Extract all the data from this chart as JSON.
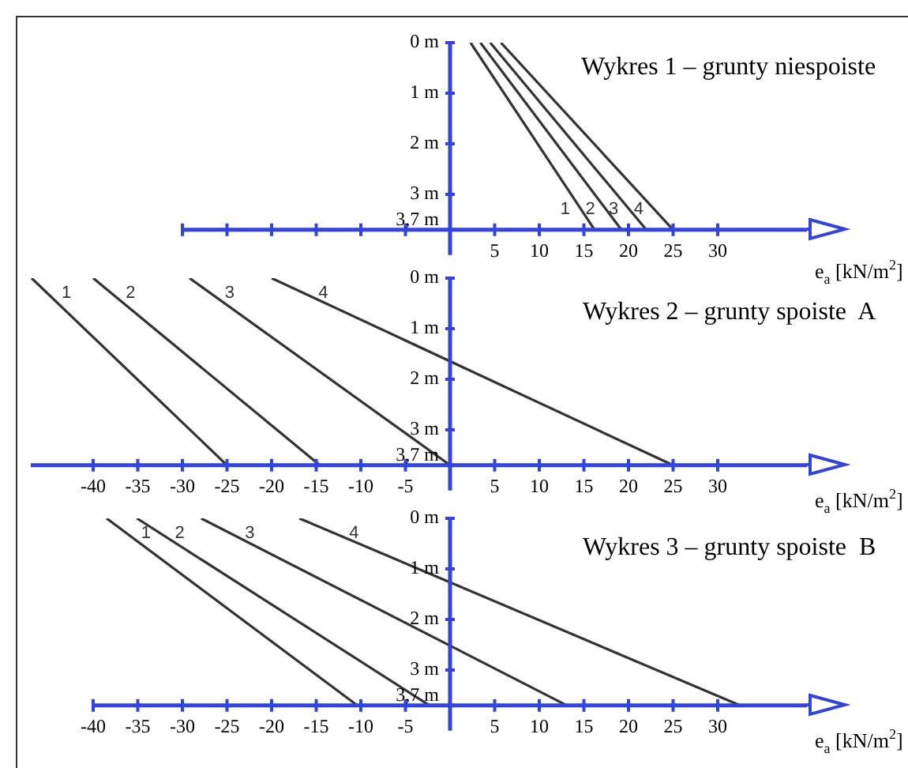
{
  "chart_data": [
    {
      "type": "line",
      "title": "Wykres 1 – grunty niespoiste",
      "xlabel": "e$_{a}$ [kN/m$^{2}$]",
      "xlim": [
        -30,
        40
      ],
      "xticks": [
        {
          "value": -30,
          "label": null
        },
        {
          "value": -25,
          "label": null
        },
        {
          "value": -20,
          "label": null
        },
        {
          "value": -15,
          "label": null
        },
        {
          "value": -10,
          "label": null
        },
        {
          "value": -5,
          "label": null
        },
        5,
        10,
        15,
        20,
        25,
        30
      ],
      "ylim": [
        4.2,
        0
      ],
      "yticks": [
        {
          "value": 0,
          "label": "0 m"
        },
        {
          "value": 1,
          "label": "1 m"
        },
        {
          "value": 2,
          "label": "2 m"
        },
        {
          "value": 3,
          "label": "3 m"
        },
        {
          "value": 3.7,
          "label": "3,7 m"
        }
      ],
      "series": [
        {
          "name": "1",
          "color": "#333333",
          "x": [
            2.3,
            16.2
          ],
          "values": [
            0,
            3.7
          ]
        },
        {
          "name": "2",
          "color": "#333333",
          "x": [
            3.4,
            19.2
          ],
          "values": [
            0,
            3.7
          ]
        },
        {
          "name": "3",
          "color": "#333333",
          "x": [
            4.5,
            22
          ],
          "values": [
            0,
            3.7
          ]
        },
        {
          "name": "4",
          "color": "#333333",
          "x": [
            5.7,
            25
          ],
          "values": [
            0,
            3.7
          ]
        }
      ],
      "legend": false,
      "grid": false
    },
    {
      "type": "line",
      "title": "Wykres 2 – grunty spoiste  A",
      "xlabel": "e$_{a}$ [kN/m$^{2}$]",
      "xlim": [
        -47,
        40
      ],
      "xticks": [
        -40,
        -35,
        -30,
        -25,
        -20,
        -15,
        -10,
        -5,
        5,
        10,
        15,
        20,
        25,
        30
      ],
      "ylim": [
        4.2,
        0
      ],
      "yticks": [
        {
          "value": 0,
          "label": "0 m"
        },
        {
          "value": 1,
          "label": "1 m"
        },
        {
          "value": 2,
          "label": "2 m"
        },
        {
          "value": 3,
          "label": "3 m"
        },
        {
          "value": 3.7,
          "label": "3,7 m"
        }
      ],
      "series": [
        {
          "name": "1",
          "color": "#333333",
          "x": [
            -46.9,
            -25
          ],
          "values": [
            0,
            3.7
          ]
        },
        {
          "name": "2",
          "color": "#333333",
          "x": [
            -40,
            -14.6
          ],
          "values": [
            0,
            3.7
          ]
        },
        {
          "name": "3",
          "color": "#333333",
          "x": [
            -29.2,
            0
          ],
          "values": [
            0,
            3.7
          ]
        },
        {
          "name": "4",
          "color": "#333333",
          "x": [
            -20,
            25
          ],
          "values": [
            0,
            3.7
          ]
        }
      ],
      "legend": false,
      "grid": false
    },
    {
      "type": "line",
      "title": "Wykres 3 – grunty spoiste  B",
      "xlabel": "e$_{a}$ [kN/m$^{2}$]",
      "xlim": [
        -40,
        40
      ],
      "xticks": [
        -40,
        -35,
        -30,
        -25,
        -20,
        -15,
        -10,
        -5,
        5,
        10,
        15,
        20,
        25,
        30
      ],
      "ylim": [
        4.2,
        0
      ],
      "yticks": [
        {
          "value": 0,
          "label": "0 m"
        },
        {
          "value": 1,
          "label": "1 m"
        },
        {
          "value": 2,
          "label": "2 m"
        },
        {
          "value": 3,
          "label": "3 m"
        },
        {
          "value": 3.7,
          "label": "3,7 m"
        }
      ],
      "series": [
        {
          "name": "1",
          "color": "#333333",
          "x": [
            -38.5,
            -10.4
          ],
          "values": [
            0,
            3.7
          ]
        },
        {
          "name": "2",
          "color": "#333333",
          "x": [
            -35.1,
            -2.3
          ],
          "values": [
            0,
            3.7
          ]
        },
        {
          "name": "3",
          "color": "#333333",
          "x": [
            -27.9,
            13.1
          ],
          "values": [
            0,
            3.7
          ]
        },
        {
          "name": "4",
          "color": "#333333",
          "x": [
            -16.9,
            32.5
          ],
          "values": [
            0,
            3.7
          ]
        }
      ],
      "legend": false,
      "grid": false
    }
  ]
}
